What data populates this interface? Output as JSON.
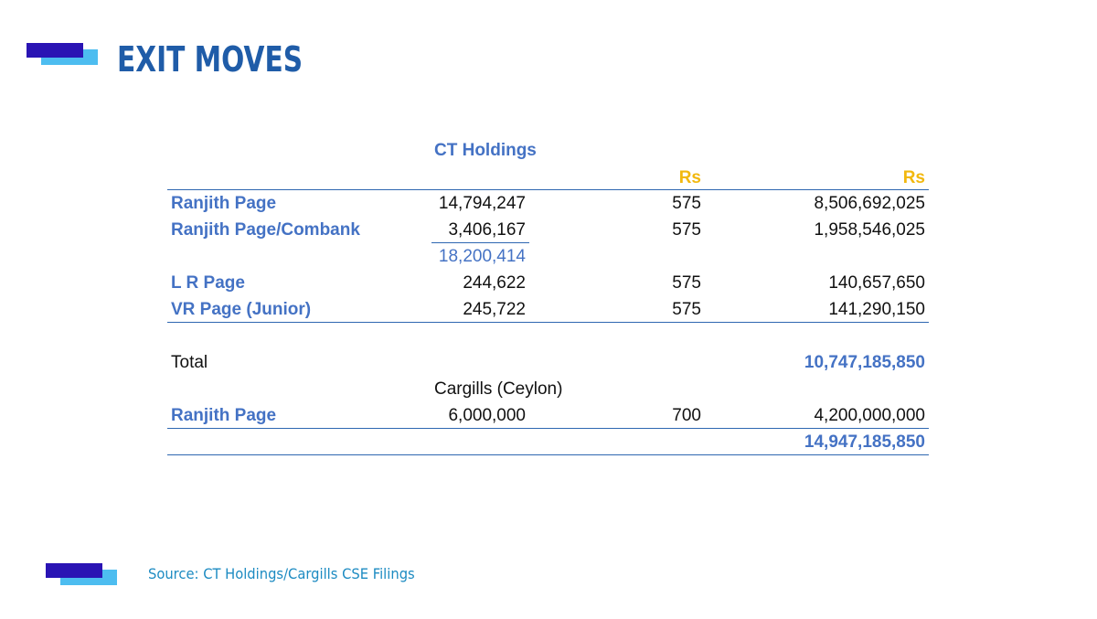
{
  "slide": {
    "title": "EXIT MOVES",
    "source": "Source: CT Holdings/Cargills CSE Filings"
  },
  "table": {
    "section_ct": "CT Holdings",
    "currency_col2": "Rs",
    "currency_col3": "Rs",
    "rows": [
      {
        "label": "Ranjith Page",
        "shares": "14,794,247",
        "price": "575",
        "value": "8,506,692,025"
      },
      {
        "label": "Ranjith Page/Combank",
        "shares": "3,406,167",
        "price": "575",
        "value": "1,958,546,025"
      },
      {
        "label": "",
        "shares": "18,200,414",
        "price": "",
        "value": ""
      },
      {
        "label": "L R Page",
        "shares": "244,622",
        "price": "575",
        "value": "140,657,650"
      },
      {
        "label": "VR Page (Junior)",
        "shares": "245,722",
        "price": "575",
        "value": "141,290,150"
      }
    ],
    "total_label": "Total",
    "total_value": "10,747,185,850",
    "section_cargills": "Cargills (Ceylon)",
    "cargills_row": {
      "label": "Ranjith Page",
      "shares": "6,000,000",
      "price": "700",
      "value": "4,200,000,000"
    },
    "grand_total": "14,947,185,850"
  },
  "colors": {
    "title": "#1f5ca8",
    "label_blue": "#4472c4",
    "currency_gold": "#f2b80e",
    "rule": "#2e67b1",
    "deco_dark": "#2a14b4",
    "deco_light": "#4dbdf0",
    "source": "#1d8bc2"
  }
}
